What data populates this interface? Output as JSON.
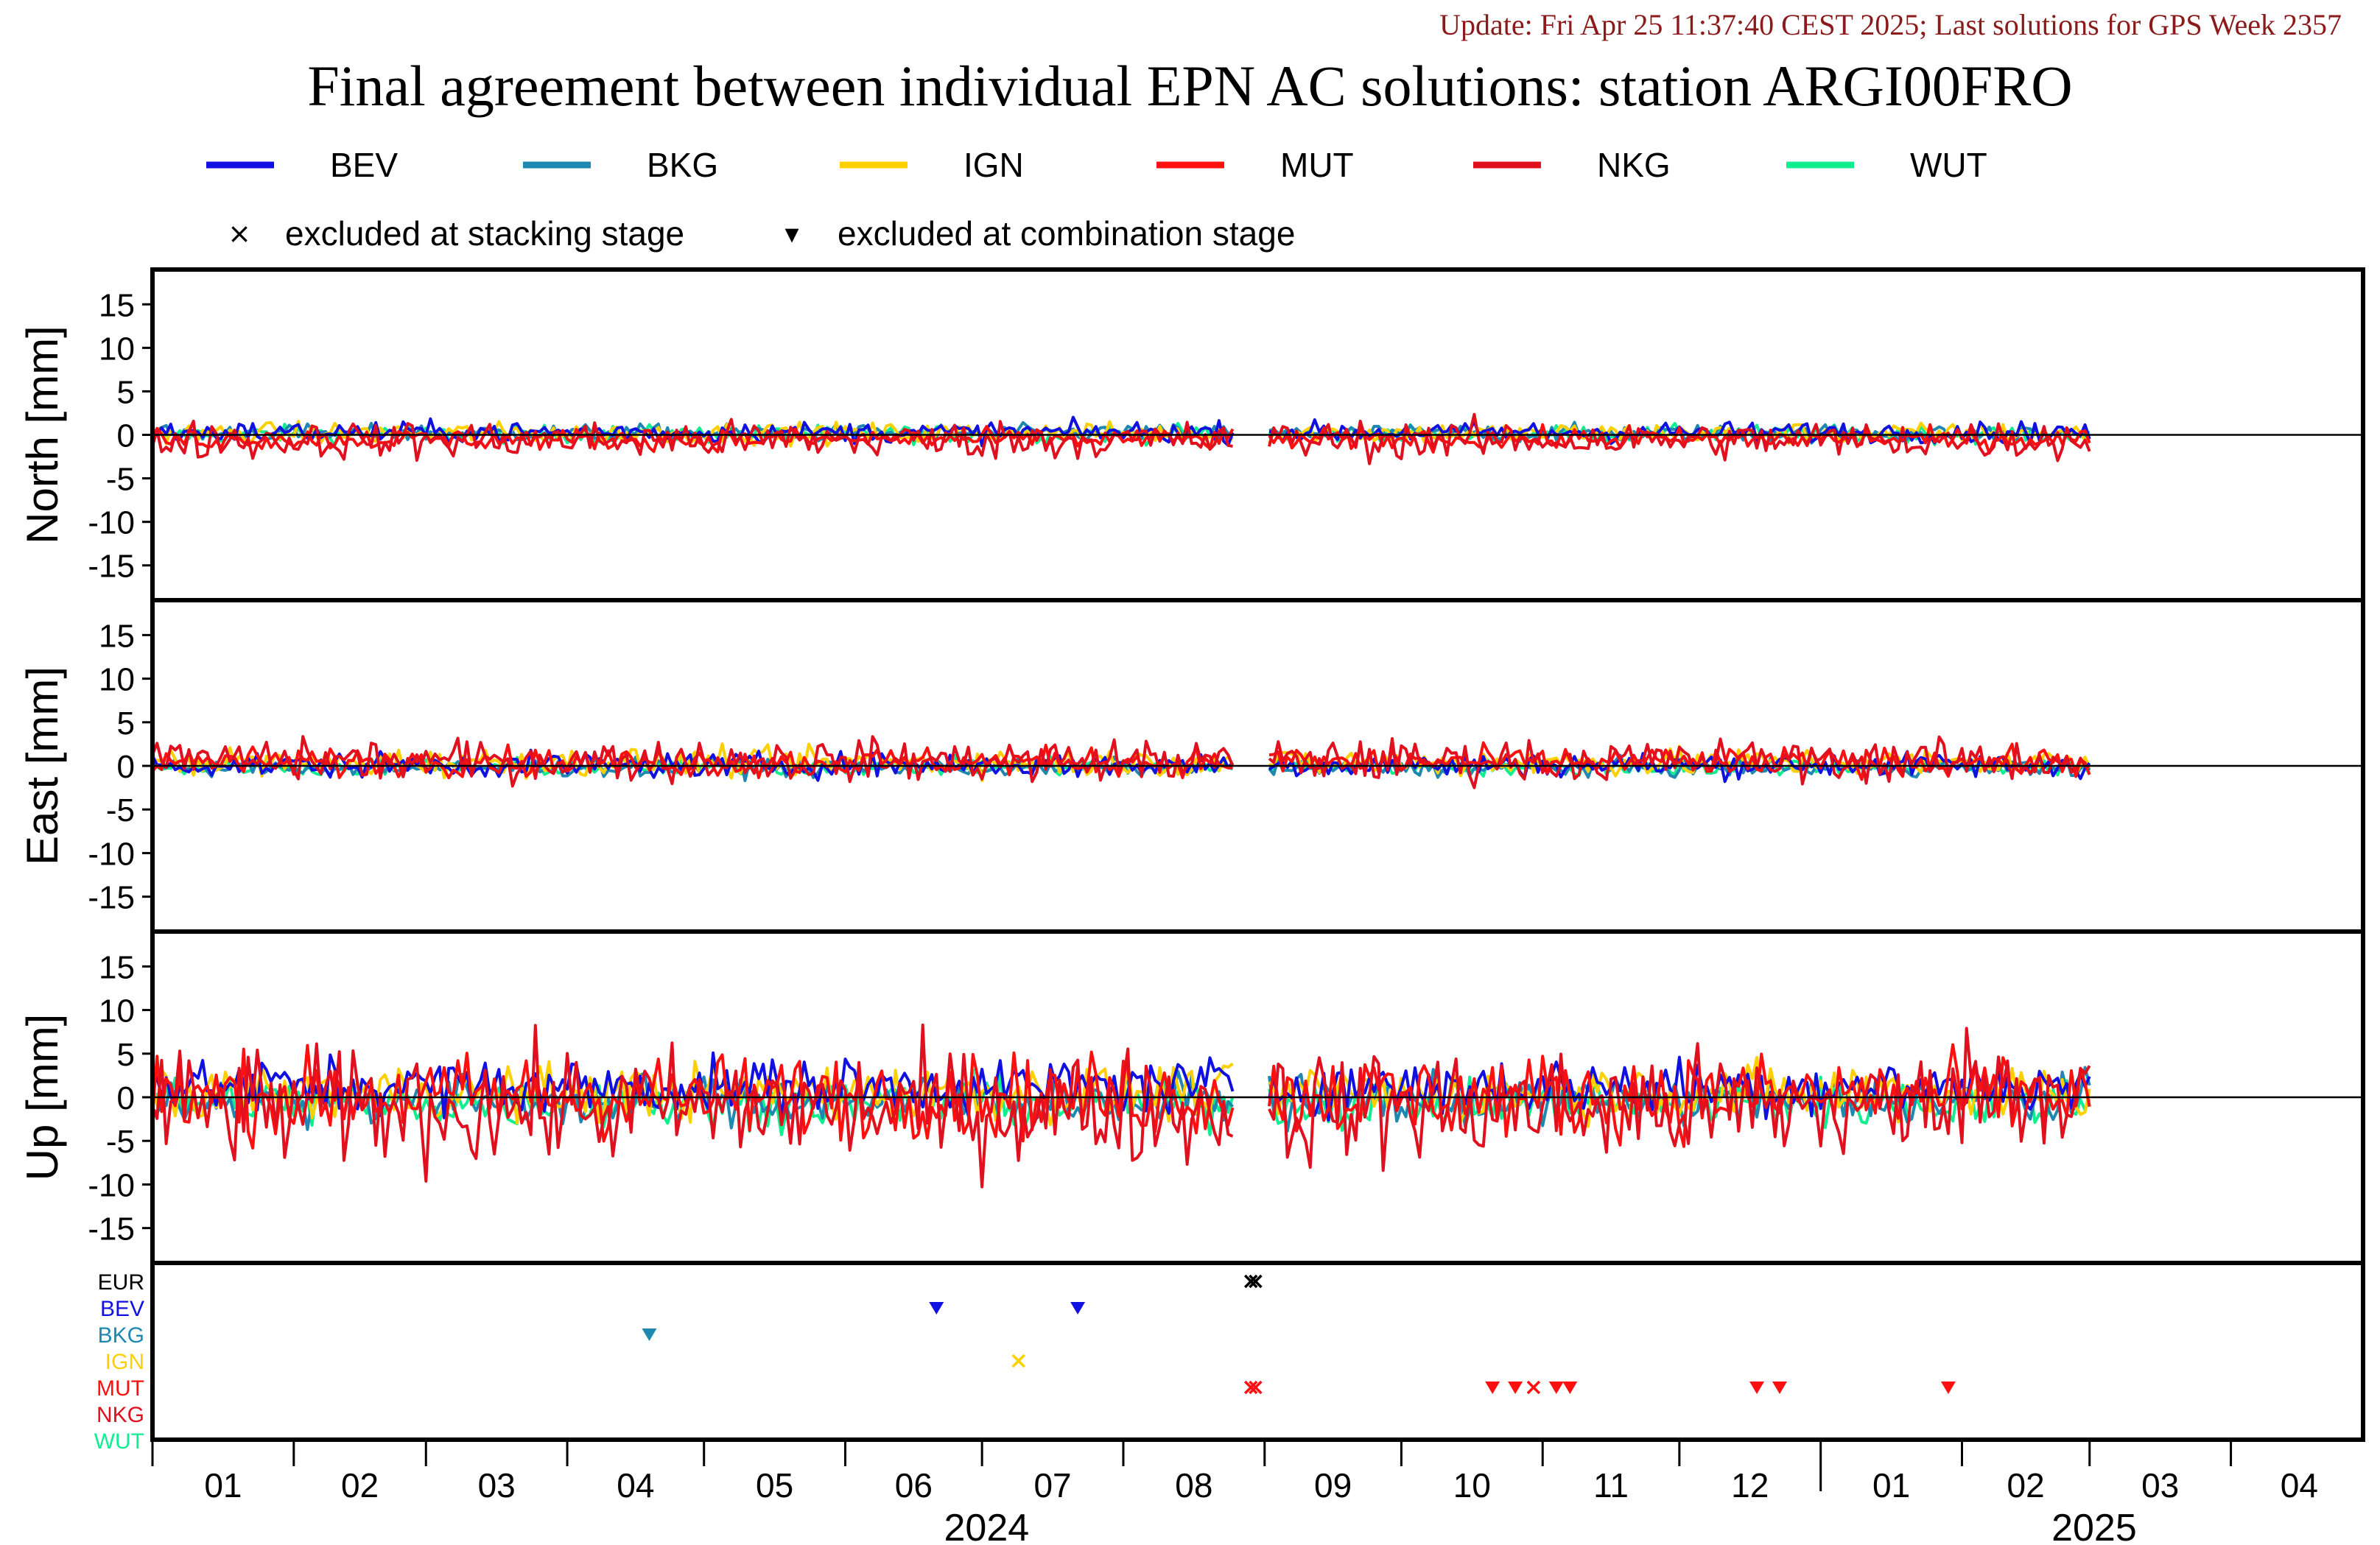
{
  "header": {
    "update": "Update: Fri Apr 25 11:37:40 CEST 2025; Last solutions for GPS Week 2357",
    "title": "Final agreement between individual EPN AC solutions: station ARGI00FRO"
  },
  "legend": {
    "series": [
      {
        "name": "BEV",
        "color": "#1010e0"
      },
      {
        "name": "BKG",
        "color": "#1e88b0"
      },
      {
        "name": "IGN",
        "color": "#ffd000"
      },
      {
        "name": "MUT",
        "color": "#ff1010"
      },
      {
        "name": "NKG",
        "color": "#e0101e"
      },
      {
        "name": "WUT",
        "color": "#10ee90"
      }
    ],
    "markers": [
      {
        "symbol": "×",
        "label": "excluded at stacking stage"
      },
      {
        "symbol": "▾",
        "label": "excluded at combination stage"
      }
    ]
  },
  "chart_data": {
    "type": "line",
    "x_axis": {
      "months": [
        "01",
        "02",
        "03",
        "04",
        "05",
        "06",
        "07",
        "08",
        "09",
        "10",
        "11",
        "12",
        "01",
        "02",
        "03",
        "04"
      ],
      "years": [
        {
          "label": "2024"
        },
        {
          "label": "2025"
        }
      ],
      "range_days": [
        0,
        485
      ]
    },
    "panels": [
      {
        "name": "north",
        "ylabel": "North [mm]",
        "ylim": [
          -19,
          19
        ],
        "ticks": [
          15,
          10,
          5,
          0,
          -5,
          -10,
          -15
        ],
        "spread": {
          "BEV": 0.6,
          "BKG": 0.5,
          "IGN": 0.6,
          "MUT": 0.6,
          "NKG": 1.1,
          "WUT": 0.5
        },
        "bias": {
          "BEV": 0.3,
          "BKG": 0.2,
          "IGN": 0.2,
          "MUT": -0.5,
          "NKG": -0.6,
          "WUT": 0.1
        }
      },
      {
        "name": "east",
        "ylabel": "East [mm]",
        "ylim": [
          -19,
          19
        ],
        "ticks": [
          15,
          10,
          5,
          0,
          -5,
          -10,
          -15
        ],
        "spread": {
          "BEV": 0.7,
          "BKG": 0.5,
          "IGN": 0.8,
          "MUT": 0.8,
          "NKG": 1.2,
          "WUT": 0.5
        },
        "bias": {
          "BEV": 0.1,
          "BKG": -0.2,
          "IGN": 0.4,
          "MUT": 0.5,
          "NKG": 0.6,
          "WUT": -0.1
        }
      },
      {
        "name": "up",
        "ylabel": "Up [mm]",
        "ylim": [
          -19,
          19
        ],
        "ticks": [
          15,
          10,
          5,
          0,
          -5,
          -10,
          -15
        ],
        "spread": {
          "BEV": 1.6,
          "BKG": 1.4,
          "IGN": 1.6,
          "MUT": 2.4,
          "NKG": 3.4,
          "WUT": 1.4
        },
        "bias": {
          "BEV": 1.3,
          "BKG": -0.3,
          "IGN": 0.6,
          "MUT": 0.2,
          "NKG": -1.2,
          "WUT": -0.6
        }
      }
    ],
    "exclusion_panel": {
      "rows": [
        {
          "name": "EUR",
          "color": "#000000"
        },
        {
          "name": "BEV",
          "color": "#1010e0"
        },
        {
          "name": "BKG",
          "color": "#1e88b0"
        },
        {
          "name": "IGN",
          "color": "#ffd000"
        },
        {
          "name": "MUT",
          "color": "#ff1010"
        },
        {
          "name": "NKG",
          "color": "#e0101e"
        },
        {
          "name": "WUT",
          "color": "#10ee90"
        }
      ],
      "events": [
        {
          "row": "EUR",
          "day": 241,
          "symbol": "stacking"
        },
        {
          "row": "EUR",
          "day": 242,
          "symbol": "stacking"
        },
        {
          "row": "BKG",
          "day": 109,
          "symbol": "combination"
        },
        {
          "row": "BEV",
          "day": 172,
          "symbol": "combination"
        },
        {
          "row": "BEV",
          "day": 203,
          "symbol": "combination"
        },
        {
          "row": "IGN",
          "day": 190,
          "symbol": "stacking"
        },
        {
          "row": "MUT",
          "day": 241,
          "symbol": "stacking"
        },
        {
          "row": "MUT",
          "day": 242,
          "symbol": "stacking"
        },
        {
          "row": "MUT",
          "day": 294,
          "symbol": "combination"
        },
        {
          "row": "MUT",
          "day": 299,
          "symbol": "combination"
        },
        {
          "row": "MUT",
          "day": 303,
          "symbol": "stacking"
        },
        {
          "row": "MUT",
          "day": 308,
          "symbol": "combination"
        },
        {
          "row": "MUT",
          "day": 311,
          "symbol": "combination"
        },
        {
          "row": "MUT",
          "day": 352,
          "symbol": "combination"
        },
        {
          "row": "MUT",
          "day": 357,
          "symbol": "combination"
        },
        {
          "row": "MUT",
          "day": 394,
          "symbol": "combination"
        }
      ]
    },
    "data_end_day": 425,
    "gap_days": [
      [
        238,
        244
      ]
    ]
  }
}
